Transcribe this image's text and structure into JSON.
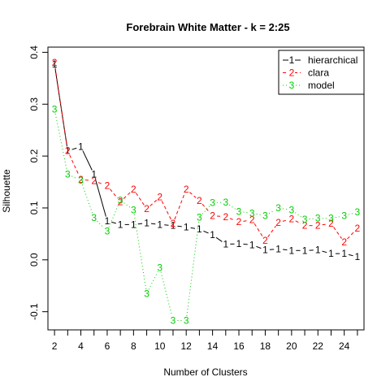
{
  "chart_data": {
    "type": "line",
    "title": "Forebrain White Matter - k = 2:25",
    "xlabel": "Number of Clusters",
    "ylabel": "Silhouette",
    "xlim": [
      1.5,
      25.5
    ],
    "ylim": [
      -0.135,
      0.41
    ],
    "x": [
      2,
      3,
      4,
      5,
      6,
      7,
      8,
      9,
      10,
      11,
      12,
      13,
      14,
      15,
      16,
      17,
      18,
      19,
      20,
      21,
      22,
      23,
      24,
      25
    ],
    "x_ticks": [
      2,
      4,
      6,
      8,
      10,
      12,
      14,
      16,
      18,
      20,
      22,
      24
    ],
    "y_ticks": [
      -0.1,
      0.0,
      0.1,
      0.2,
      0.3,
      0.4
    ],
    "y_tick_labels": [
      "-0.1",
      "0.0",
      "0.1",
      "0.2",
      "0.3",
      "0.4"
    ],
    "grid": false,
    "legend_position": "top-right",
    "series": [
      {
        "name": "hierarchical",
        "marker": "1",
        "color": "#000000",
        "linestyle": "solid",
        "values": [
          0.377,
          0.21,
          0.218,
          0.165,
          0.075,
          0.068,
          0.068,
          0.071,
          0.068,
          0.066,
          0.063,
          0.059,
          0.048,
          0.03,
          0.031,
          0.029,
          0.019,
          0.021,
          0.018,
          0.018,
          0.019,
          0.012,
          0.012,
          0.006
        ]
      },
      {
        "name": "clara",
        "marker": "2",
        "color": "#ff0000",
        "linestyle": "dashed",
        "values": [
          0.38,
          0.21,
          0.155,
          0.152,
          0.143,
          0.112,
          0.136,
          0.098,
          0.121,
          0.07,
          0.136,
          0.114,
          0.085,
          0.083,
          0.073,
          0.077,
          0.037,
          0.072,
          0.079,
          0.066,
          0.066,
          0.07,
          0.034,
          0.061
        ]
      },
      {
        "name": "model",
        "marker": "3",
        "color": "#00cd00",
        "linestyle": "dotted",
        "values": [
          0.29,
          0.165,
          0.153,
          0.081,
          0.055,
          0.115,
          0.096,
          -0.065,
          -0.015,
          -0.117,
          -0.117,
          0.082,
          0.11,
          0.111,
          0.093,
          0.09,
          0.085,
          0.1,
          0.096,
          0.078,
          0.08,
          0.08,
          0.085,
          0.092
        ]
      }
    ]
  }
}
